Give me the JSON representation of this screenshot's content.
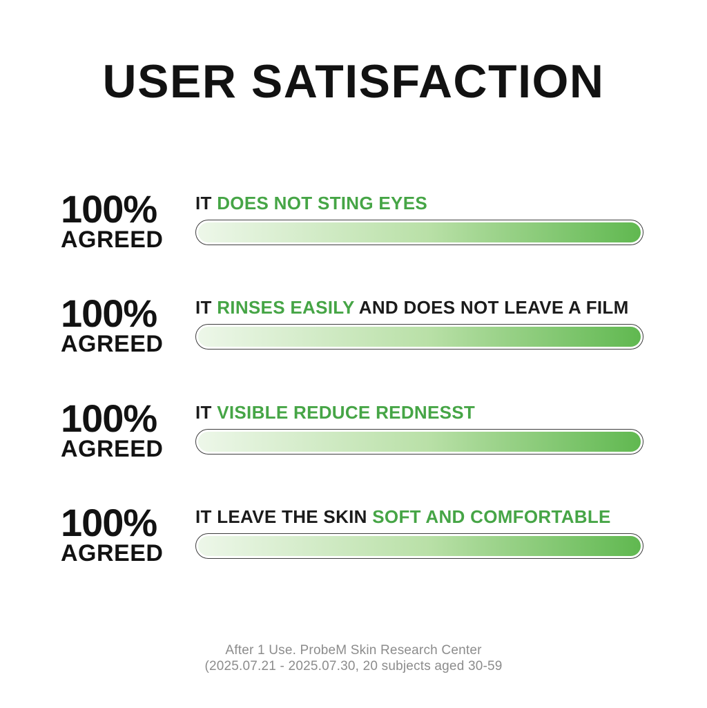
{
  "title": "USER SATISFACTION",
  "rows": [
    {
      "stat": "100%",
      "stat_label": "AGREED",
      "percent": 100,
      "parts": [
        {
          "text": "IT "
        },
        {
          "text": "DOES NOT STING EYES"
        },
        {
          "text": ""
        }
      ]
    },
    {
      "stat": "100%",
      "stat_label": "AGREED",
      "percent": 100,
      "parts": [
        {
          "text": "IT "
        },
        {
          "text": "RINSES EASILY"
        },
        {
          "text": " AND DOES NOT LEAVE A FILM"
        }
      ]
    },
    {
      "stat": "100%",
      "stat_label": "AGREED",
      "percent": 100,
      "parts": [
        {
          "text": "IT "
        },
        {
          "text": "VISIBLE REDUCE REDNESST"
        },
        {
          "text": ""
        }
      ]
    },
    {
      "stat": "100%",
      "stat_label": "AGREED",
      "percent": 100,
      "parts": [
        {
          "text": "IT LEAVE THE SKIN "
        },
        {
          "text": "SOFT AND COMFORTABLE"
        },
        {
          "text": ""
        }
      ]
    }
  ],
  "footer": {
    "line1": "After 1 Use. ProbeM Skin Research Center",
    "line2": "(2025.07.21 - 2025.07.30, 20 subjects aged 30-59"
  },
  "colors": {
    "accent_green": "#46a546",
    "bar_gradient_start": "#edf7e9",
    "bar_gradient_end": "#60b850",
    "text_black": "#121212",
    "footer_gray": "#8c8c8c"
  },
  "chart_data": {
    "type": "bar",
    "orientation": "horizontal",
    "title": "USER SATISFACTION",
    "categories": [
      "IT DOES NOT STING EYES",
      "IT RINSES EASILY AND DOES NOT LEAVE A FILM",
      "IT VISIBLE REDUCE REDNESST",
      "IT LEAVE THE SKIN SOFT AND COMFORTABLE"
    ],
    "values": [
      100,
      100,
      100,
      100
    ],
    "value_labels": [
      "100% AGREED",
      "100% AGREED",
      "100% AGREED",
      "100% AGREED"
    ],
    "xlabel": "",
    "ylabel": "",
    "xlim": [
      0,
      100
    ],
    "grid": false,
    "legend": false,
    "annotations": [
      "After 1 Use. ProbeM Skin Research Center",
      "(2025.07.21 - 2025.07.30, 20 subjects aged 30-59"
    ]
  }
}
